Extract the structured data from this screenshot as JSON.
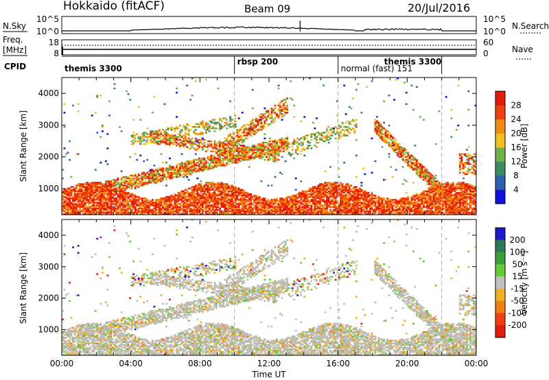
{
  "header": {
    "title": "Hokkaido (fitACF)",
    "beam": "Beam 09",
    "date": "20/Jul/2016"
  },
  "panels": {
    "nsky": {
      "label": "N.Sky",
      "left_ticks": [
        "10^5",
        "10^0"
      ],
      "right_ticks": [
        "10^5",
        "10^0"
      ],
      "right_label": "N.Search"
    },
    "freq": {
      "label_line1": "Freq.",
      "label_line2": "[MHz]",
      "left_ticks": [
        "18",
        "8"
      ],
      "right_ticks": [
        "60",
        "0"
      ],
      "right_label": "Nave"
    },
    "cpid": {
      "label": "CPID",
      "entries": [
        {
          "text": "themis 3300",
          "hour": 0
        },
        {
          "text": "rbsp 200",
          "hour": 10
        },
        {
          "text": "normal (fast) 151",
          "hour": 16
        },
        {
          "text": "themis 3300",
          "hour": 18.5
        }
      ],
      "boundaries": [
        10,
        16,
        22
      ]
    }
  },
  "chart_data": [
    {
      "type": "heatmap",
      "name": "power",
      "xlabel": "",
      "ylabel": "Slant Range [km]",
      "x_range_hours": [
        0,
        24
      ],
      "ylim": [
        180,
        4500
      ],
      "y_ticks": [
        1000,
        2000,
        3000,
        4000
      ],
      "colorbar": {
        "label": "Power [dB]",
        "tick_labels": [
          "4",
          "8",
          "12",
          "16",
          "20",
          "24",
          "28"
        ],
        "colors": [
          "#1010e0",
          "#2d5fb0",
          "#3c8c64",
          "#6fb04a",
          "#f0c020",
          "#f08c10",
          "#f04010",
          "#e41a0a"
        ]
      },
      "features": [
        {
          "desc": "dense near-range echoes",
          "t_start": 0,
          "t_end": 24,
          "range_km": [
            300,
            1300
          ]
        },
        {
          "desc": "sloping band",
          "t_start": 2.5,
          "t_end": 13,
          "range_km": [
            1000,
            3000
          ]
        },
        {
          "desc": "sloping band",
          "t_start": 18,
          "t_end": 22.5,
          "range_km": [
            500,
            3000
          ]
        }
      ]
    },
    {
      "type": "heatmap",
      "name": "velocity",
      "xlabel": "Time UT",
      "ylabel": "Slant Range [km]",
      "x_range_hours": [
        0,
        24
      ],
      "x_tick_labels": [
        "00:00",
        "04:00",
        "08:00",
        "12:00",
        "16:00",
        "20:00",
        "00:00"
      ],
      "ylim": [
        180,
        4500
      ],
      "y_ticks": [
        1000,
        2000,
        3000,
        4000
      ],
      "colorbar": {
        "label": "Velocity [m s⁻¹]",
        "tick_labels": [
          "200",
          "100",
          "50",
          "15",
          "-15",
          "-50",
          "-100",
          "-200"
        ],
        "colors": [
          "#1a1acc",
          "#2a7a5a",
          "#3aa03a",
          "#66cc33",
          "#c0c0c0",
          "#f0b020",
          "#f08010",
          "#f04010",
          "#e41a0a"
        ]
      }
    }
  ],
  "colors": {
    "ground_scatter": "#bebeb6",
    "frame": "#000000"
  }
}
